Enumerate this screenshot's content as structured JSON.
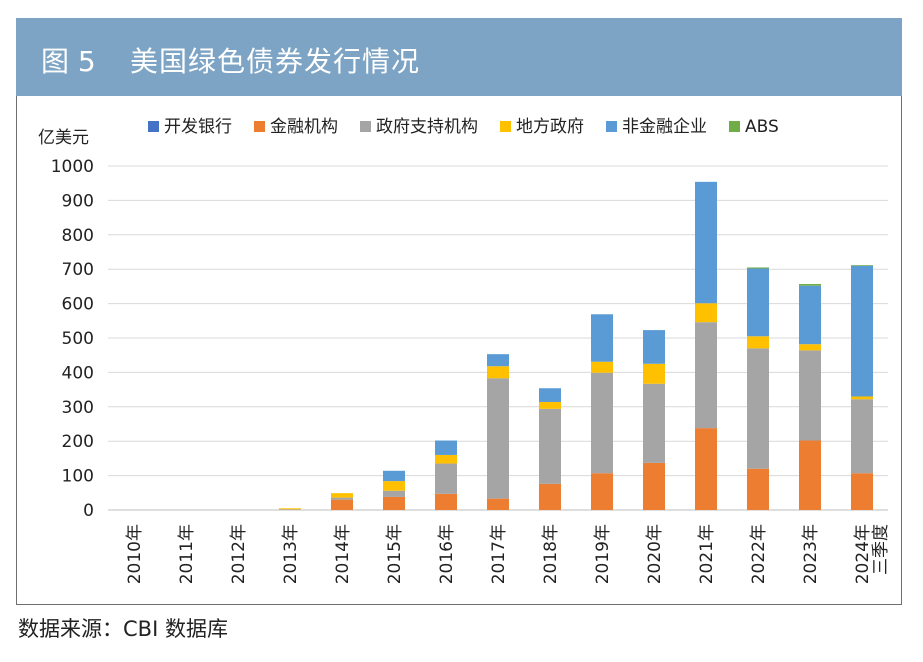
{
  "figure": {
    "number": "图 5",
    "title": "美国绿色债券发行情况"
  },
  "source": "数据来源：CBI 数据库",
  "chart_data": {
    "type": "bar",
    "stacked": true,
    "ylabel": "亿美元",
    "ylim": [
      0,
      1000
    ],
    "yticks": [
      "0",
      "100",
      "200",
      "300",
      "400",
      "500",
      "600",
      "700",
      "800",
      "900",
      "1000"
    ],
    "grid": true,
    "legend_position": "top",
    "categories": [
      "2010年",
      "2011年",
      "2012年",
      "2013年",
      "2014年",
      "2015年",
      "2016年",
      "2017年",
      "2018年",
      "2019年",
      "2020年",
      "2021年",
      "2022年",
      "2023年",
      "2024年三季度"
    ],
    "series": [
      {
        "name": "开发银行",
        "color": "#4472c4",
        "values": [
          0,
          0,
          0,
          0,
          0,
          0,
          0,
          0,
          0,
          0,
          0,
          0,
          0,
          0,
          0
        ]
      },
      {
        "name": "金融机构",
        "color": "#ed7d31",
        "values": [
          0,
          0,
          0,
          0,
          30,
          38,
          47,
          33,
          76,
          107,
          137,
          238,
          120,
          202,
          107
        ]
      },
      {
        "name": "政府支持机构",
        "color": "#a5a5a5",
        "values": [
          0,
          0,
          0,
          2,
          6,
          18,
          88,
          350,
          218,
          292,
          230,
          308,
          350,
          262,
          215
        ]
      },
      {
        "name": "地方政府",
        "color": "#ffc000",
        "values": [
          0,
          0,
          0,
          3,
          13,
          28,
          25,
          35,
          20,
          32,
          58,
          55,
          35,
          18,
          8
        ]
      },
      {
        "name": "非金融企业",
        "color": "#5b9bd5",
        "values": [
          0,
          0,
          0,
          0,
          0,
          30,
          42,
          35,
          40,
          138,
          98,
          353,
          197,
          170,
          380
        ]
      },
      {
        "name": "ABS",
        "color": "#70ad47",
        "values": [
          0,
          0,
          0,
          0,
          0,
          0,
          0,
          0,
          0,
          0,
          0,
          0,
          3,
          5,
          2
        ]
      }
    ]
  }
}
